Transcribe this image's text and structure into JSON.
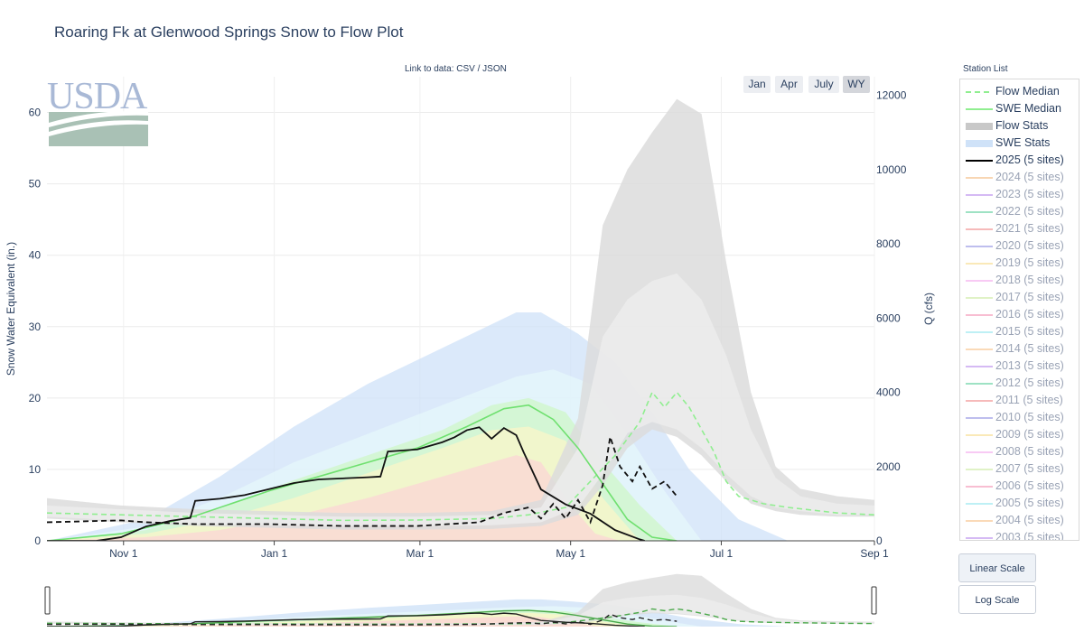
{
  "page": {
    "title": "Roaring Fk at Glenwood Springs Snow to Flow Plot",
    "link_prefix": "Link to data: ",
    "link_csv": "CSV",
    "link_sep": " / ",
    "link_json": "JSON",
    "logo_text": "USDA"
  },
  "range_buttons": [
    {
      "label": "Jan",
      "active": false
    },
    {
      "label": "Apr",
      "active": false
    },
    {
      "label": "July",
      "active": false
    },
    {
      "label": "WY",
      "active": true
    }
  ],
  "station_list_title": "Station List",
  "legend": [
    {
      "label": "Flow Median",
      "style": "dash",
      "color": "#90ee90",
      "active": true
    },
    {
      "label": "SWE Median",
      "style": "line",
      "color": "#90ee90",
      "active": true
    },
    {
      "label": "Flow Stats",
      "style": "band",
      "color": "#c8c8c8",
      "active": true
    },
    {
      "label": "SWE Stats",
      "style": "band",
      "color": "#cfe2f8",
      "active": true
    },
    {
      "label": "2025 (5 sites)",
      "style": "line",
      "color": "#000000",
      "active": true
    },
    {
      "label": "2024 (5 sites)",
      "style": "line",
      "color": "#f6c89a",
      "active": false
    },
    {
      "label": "2023 (5 sites)",
      "style": "line",
      "color": "#c7a3f0",
      "active": false
    },
    {
      "label": "2022 (5 sites)",
      "style": "line",
      "color": "#7fd8b0",
      "active": false
    },
    {
      "label": "2021 (5 sites)",
      "style": "line",
      "color": "#f4a3a3",
      "active": false
    },
    {
      "label": "2020 (5 sites)",
      "style": "line",
      "color": "#a9a9e8",
      "active": false
    },
    {
      "label": "2019 (5 sites)",
      "style": "line",
      "color": "#f8e2a0",
      "active": false
    },
    {
      "label": "2018 (5 sites)",
      "style": "line",
      "color": "#f5b9f0",
      "active": false
    },
    {
      "label": "2017 (5 sites)",
      "style": "line",
      "color": "#d6eeb4",
      "active": false
    },
    {
      "label": "2016 (5 sites)",
      "style": "line",
      "color": "#f6a8c4",
      "active": false
    },
    {
      "label": "2015 (5 sites)",
      "style": "line",
      "color": "#a8ecf2",
      "active": false
    },
    {
      "label": "2014 (5 sites)",
      "style": "line",
      "color": "#f8cda0",
      "active": false
    },
    {
      "label": "2013 (5 sites)",
      "style": "line",
      "color": "#c7a3f0",
      "active": false
    },
    {
      "label": "2012 (5 sites)",
      "style": "line",
      "color": "#7fd8b0",
      "active": false
    },
    {
      "label": "2011 (5 sites)",
      "style": "line",
      "color": "#f4a3a3",
      "active": false
    },
    {
      "label": "2010 (5 sites)",
      "style": "line",
      "color": "#a9a9e8",
      "active": false
    },
    {
      "label": "2009 (5 sites)",
      "style": "line",
      "color": "#f8e2a0",
      "active": false
    },
    {
      "label": "2008 (5 sites)",
      "style": "line",
      "color": "#f5b9f0",
      "active": false
    },
    {
      "label": "2007 (5 sites)",
      "style": "line",
      "color": "#d6eeb4",
      "active": false
    },
    {
      "label": "2006 (5 sites)",
      "style": "line",
      "color": "#f6a8c4",
      "active": false
    },
    {
      "label": "2005 (5 sites)",
      "style": "line",
      "color": "#a8ecf2",
      "active": false
    },
    {
      "label": "2004 (5 sites)",
      "style": "line",
      "color": "#f8cda0",
      "active": false
    },
    {
      "label": "2003 (5 sites)",
      "style": "line",
      "color": "#c7a3f0",
      "active": false
    }
  ],
  "scale_buttons": [
    {
      "label": "Linear Scale",
      "active": true
    },
    {
      "label": "Log Scale",
      "active": false
    }
  ],
  "chart_data": {
    "type": "line",
    "title": "Roaring Fk at Glenwood Springs Snow to Flow Plot",
    "xlabel": "",
    "ylabel": "Snow Water Equivalent (in.)",
    "y2label": "Q (cfs)",
    "x_domain_days": [
      0,
      335
    ],
    "x_ticks": [
      {
        "label": "Nov  1",
        "day": 31
      },
      {
        "label": "Jan  1",
        "day": 92
      },
      {
        "label": "Mar  1",
        "day": 151
      },
      {
        "label": "May  1",
        "day": 212
      },
      {
        "label": "Jul  1",
        "day": 273
      },
      {
        "label": "Sep  1",
        "day": 335
      }
    ],
    "ylim": [
      0,
      65
    ],
    "y_ticks": [
      0,
      10,
      20,
      30,
      40,
      50,
      60
    ],
    "y2lim": [
      0,
      12500
    ],
    "y2_ticks": [
      0,
      2000,
      4000,
      6000,
      8000,
      10000,
      12000
    ],
    "grid": true,
    "legend_position": "right",
    "series": [
      {
        "name": "SWE Stats",
        "axis": "y",
        "kind": "band",
        "color": "#cfe2f8",
        "x": [
          0,
          40,
          70,
          100,
          130,
          160,
          190,
          200,
          215,
          230,
          245,
          260,
          280,
          300
        ],
        "lo": [
          0,
          0,
          0,
          0,
          0,
          0,
          0,
          0,
          0,
          0,
          0,
          0,
          0,
          0
        ],
        "hi": [
          0,
          3,
          9,
          16,
          22,
          27,
          32,
          32,
          29,
          25,
          18,
          10,
          3,
          0
        ]
      },
      {
        "name": "SWE Stats",
        "axis": "y",
        "kind": "band",
        "color": "#e6f7fb",
        "x": [
          0,
          40,
          70,
          100,
          130,
          160,
          190,
          205,
          220,
          235,
          250,
          265
        ],
        "lo": [
          0,
          0,
          0,
          0,
          0,
          0,
          0,
          0,
          0,
          0,
          0,
          0
        ],
        "hi": [
          0,
          2,
          6,
          11,
          15,
          19,
          23,
          24,
          22,
          15,
          7,
          0
        ]
      },
      {
        "name": "SWE Stats",
        "axis": "y",
        "kind": "band",
        "color": "#cff7c8",
        "x": [
          0,
          40,
          70,
          100,
          130,
          160,
          180,
          195,
          210,
          225,
          240,
          255
        ],
        "lo": [
          0,
          0,
          0,
          0,
          0,
          0,
          0,
          0,
          0,
          0,
          0,
          0
        ],
        "hi": [
          0,
          1.5,
          4.5,
          8.5,
          12,
          15.5,
          19,
          20,
          18,
          11,
          5,
          0
        ]
      },
      {
        "name": "SWE Stats",
        "axis": "y",
        "kind": "band",
        "color": "#fbf6c8",
        "x": [
          0,
          40,
          70,
          100,
          130,
          160,
          180,
          195,
          210,
          225,
          240
        ],
        "lo": [
          0,
          0,
          0,
          0,
          0,
          0,
          0,
          0,
          0,
          0,
          0
        ],
        "hi": [
          0,
          1,
          3,
          6,
          9.5,
          13,
          15.5,
          16,
          14,
          6,
          0
        ]
      },
      {
        "name": "SWE Stats",
        "axis": "y",
        "kind": "band",
        "color": "#fbd6d6",
        "x": [
          0,
          40,
          70,
          100,
          130,
          160,
          180,
          190,
          200,
          212,
          222,
          232
        ],
        "lo": [
          0,
          0,
          0,
          0,
          0,
          0,
          0,
          0,
          0,
          0,
          0,
          0
        ],
        "hi": [
          0,
          0.5,
          1.5,
          3.5,
          6,
          9,
          11,
          12,
          11,
          5,
          1,
          0
        ]
      },
      {
        "name": "Flow Stats",
        "axis": "y2",
        "kind": "band",
        "color": "#dcdcdc",
        "x": [
          0,
          30,
          60,
          90,
          120,
          150,
          180,
          200,
          215,
          225,
          235,
          245,
          255,
          265,
          275,
          285,
          295,
          305,
          320,
          335
        ],
        "lo": [
          600,
          500,
          400,
          350,
          300,
          300,
          320,
          400,
          700,
          1500,
          2500,
          3000,
          2800,
          2300,
          1600,
          1000,
          800,
          700,
          650,
          650
        ],
        "hi": [
          1150,
          950,
          850,
          800,
          750,
          750,
          800,
          1100,
          3300,
          8500,
          10000,
          11000,
          11900,
          11500,
          7500,
          4000,
          2000,
          1400,
          1200,
          1100
        ]
      },
      {
        "name": "Flow Stats",
        "axis": "y2",
        "kind": "band",
        "color": "#ececec",
        "x": [
          0,
          30,
          60,
          90,
          120,
          150,
          180,
          200,
          215,
          225,
          235,
          245,
          255,
          265,
          275,
          285,
          295,
          305,
          320,
          335
        ],
        "lo": [
          650,
          550,
          450,
          420,
          400,
          400,
          420,
          500,
          900,
          1800,
          2900,
          3200,
          3000,
          2500,
          1800,
          1200,
          900,
          800,
          700,
          700
        ],
        "hi": [
          950,
          850,
          750,
          700,
          650,
          650,
          700,
          900,
          2500,
          5500,
          6500,
          7000,
          7200,
          6500,
          5000,
          3000,
          1700,
          1200,
          1000,
          950
        ]
      },
      {
        "name": "Flow Median",
        "axis": "y2",
        "kind": "line",
        "dash": true,
        "color": "#90ee90",
        "x": [
          0,
          30,
          60,
          90,
          120,
          150,
          180,
          195,
          210,
          220,
          230,
          240,
          245,
          250,
          255,
          260,
          265,
          270,
          275,
          280,
          290,
          300,
          320,
          335
        ],
        "y": [
          750,
          700,
          650,
          600,
          550,
          560,
          600,
          700,
          900,
          1600,
          2300,
          3200,
          4000,
          3600,
          4000,
          3600,
          3000,
          2400,
          1600,
          1200,
          1000,
          900,
          750,
          700
        ]
      },
      {
        "name": "SWE Median",
        "axis": "y",
        "kind": "line",
        "color": "#6fe06f",
        "x": [
          0,
          30,
          60,
          90,
          120,
          150,
          170,
          185,
          195,
          205,
          215,
          225,
          235,
          245,
          255
        ],
        "y": [
          0,
          1,
          3.5,
          7,
          10,
          13,
          16,
          18.5,
          19,
          17,
          13,
          8,
          3,
          0.5,
          0
        ]
      },
      {
        "name": "2025 (5 sites)",
        "axis": "y",
        "kind": "line",
        "color": "#111111",
        "x": [
          0,
          20,
          30,
          40,
          50,
          58,
          60,
          70,
          80,
          100,
          110,
          130,
          135,
          138,
          150,
          160,
          165,
          170,
          175,
          180,
          185,
          190,
          193,
          200,
          210,
          220,
          230,
          240,
          242
        ],
        "y": [
          0,
          0,
          0.5,
          2,
          2.8,
          3.2,
          5.6,
          5.9,
          6.4,
          8.1,
          8.6,
          8.9,
          9,
          12.5,
          12.8,
          13.8,
          14.5,
          15.5,
          15.9,
          14.3,
          15.8,
          14.8,
          12.4,
          7.2,
          5.1,
          3.8,
          1.5,
          0.2,
          0
        ]
      },
      {
        "name": "2025 (5 sites)",
        "axis": "y2",
        "kind": "line",
        "dash": true,
        "color": "#111111",
        "x": [
          0,
          30,
          40,
          60,
          90,
          120,
          150,
          175,
          185,
          195,
          200,
          205,
          210,
          215,
          220,
          225,
          228,
          232,
          237,
          240,
          245,
          250,
          255
        ],
        "y": [
          500,
          550,
          500,
          450,
          450,
          400,
          400,
          500,
          750,
          900,
          600,
          1000,
          600,
          1100,
          500,
          1500,
          2800,
          2000,
          1600,
          2000,
          1400,
          1600,
          1200
        ]
      }
    ]
  }
}
